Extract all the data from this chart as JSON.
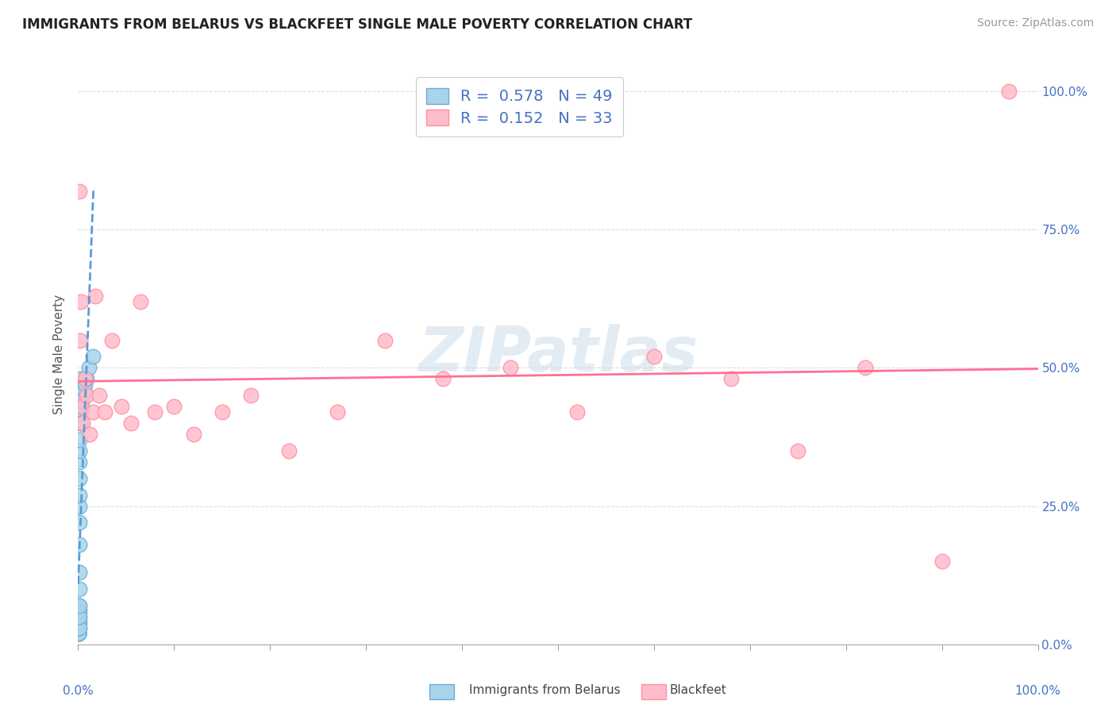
{
  "title": "IMMIGRANTS FROM BELARUS VS BLACKFEET SINGLE MALE POVERTY CORRELATION CHART",
  "source": "Source: ZipAtlas.com",
  "ylabel": "Single Male Poverty",
  "legend_label1": "Immigrants from Belarus",
  "legend_label2": "Blackfeet",
  "r1": 0.578,
  "n1": 49,
  "r2": 0.152,
  "n2": 33,
  "blue_color": "#A8D4EC",
  "blue_edge": "#6BAED6",
  "pink_color": "#FFBCCA",
  "pink_edge": "#FF8FA3",
  "blue_line_color": "#5B9BD5",
  "pink_line_color": "#FF7096",
  "blue_scatter_x": [
    0.0002,
    0.0003,
    0.0003,
    0.0004,
    0.0004,
    0.0004,
    0.0005,
    0.0005,
    0.0005,
    0.0005,
    0.0006,
    0.0006,
    0.0006,
    0.0006,
    0.0007,
    0.0007,
    0.0007,
    0.0008,
    0.0008,
    0.0008,
    0.0009,
    0.0009,
    0.001,
    0.001,
    0.001,
    0.001,
    0.001,
    0.0012,
    0.0012,
    0.0013,
    0.0013,
    0.0014,
    0.0015,
    0.0016,
    0.0017,
    0.0018,
    0.002,
    0.002,
    0.0022,
    0.0025,
    0.003,
    0.003,
    0.004,
    0.005,
    0.006,
    0.007,
    0.009,
    0.011,
    0.015
  ],
  "blue_scatter_y": [
    0.02,
    0.03,
    0.05,
    0.02,
    0.04,
    0.06,
    0.02,
    0.03,
    0.04,
    0.06,
    0.02,
    0.03,
    0.05,
    0.07,
    0.02,
    0.04,
    0.06,
    0.03,
    0.05,
    0.07,
    0.04,
    0.06,
    0.03,
    0.05,
    0.07,
    0.1,
    0.13,
    0.18,
    0.22,
    0.25,
    0.27,
    0.3,
    0.33,
    0.35,
    0.37,
    0.4,
    0.42,
    0.44,
    0.46,
    0.48,
    0.4,
    0.43,
    0.44,
    0.45,
    0.46,
    0.47,
    0.48,
    0.5,
    0.52
  ],
  "pink_scatter_x": [
    0.001,
    0.002,
    0.003,
    0.004,
    0.005,
    0.007,
    0.009,
    0.012,
    0.015,
    0.018,
    0.022,
    0.028,
    0.035,
    0.045,
    0.055,
    0.065,
    0.08,
    0.1,
    0.12,
    0.15,
    0.18,
    0.22,
    0.27,
    0.32,
    0.38,
    0.45,
    0.52,
    0.6,
    0.68,
    0.75,
    0.82,
    0.9,
    0.97
  ],
  "pink_scatter_y": [
    0.82,
    0.55,
    0.62,
    0.43,
    0.4,
    0.48,
    0.45,
    0.38,
    0.42,
    0.63,
    0.45,
    0.42,
    0.55,
    0.43,
    0.4,
    0.62,
    0.42,
    0.43,
    0.38,
    0.42,
    0.45,
    0.35,
    0.42,
    0.55,
    0.48,
    0.5,
    0.42,
    0.52,
    0.48,
    0.35,
    0.5,
    0.15,
    1.0
  ],
  "watermark": "ZIPatlas",
  "xlim": [
    0.0,
    1.0
  ],
  "ylim": [
    0.0,
    1.0
  ],
  "grid_color": "#DDDDDD",
  "background_color": "#FFFFFF",
  "title_color": "#222222",
  "axis_label_color": "#555555",
  "tick_color": "#4472C4",
  "legend_box_color": "#FFFFFF",
  "title_fontsize": 12,
  "source_fontsize": 10,
  "tick_fontsize": 11
}
